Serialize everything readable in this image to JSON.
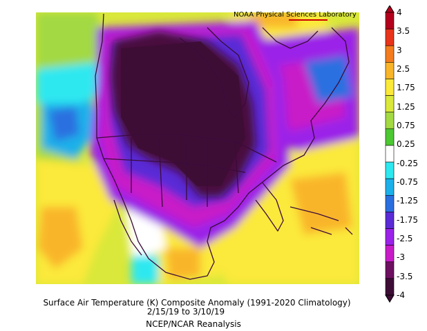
{
  "header": {
    "credit": "NOAA Physical Sciences Laboratory"
  },
  "caption": {
    "title": "Surface Air Temperature (K) Composite Anomaly (1991-2020 Climatology)",
    "date_range": "2/15/19  to 3/10/19",
    "source": "NCEP/NCAR Reanalysis"
  },
  "colorbar": {
    "labels": [
      "4",
      "3.5",
      "3",
      "2.5",
      "1.75",
      "1.25",
      "0.75",
      "0.25",
      "-0.25",
      "-0.75",
      "-1.25",
      "-1.75",
      "-2.5",
      "-3",
      "-3.5",
      "-4"
    ],
    "colors": [
      "#b3001c",
      "#e8341a",
      "#f47c1e",
      "#f9b52a",
      "#fbe93a",
      "#d9e83a",
      "#a3d942",
      "#4cc832",
      "#ffffff",
      "#2ee8f0",
      "#1cb0ea",
      "#2a6fe0",
      "#5a2bd6",
      "#9b22e8",
      "#c81cc8",
      "#6e1060",
      "#3e0d36"
    ]
  },
  "colors": {
    "coast": "#3b0b3b",
    "deep_cold": "#4a0a3e"
  }
}
